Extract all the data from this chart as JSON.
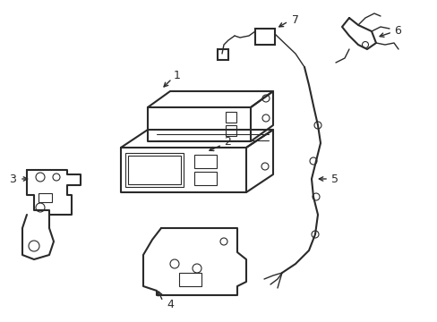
{
  "bg_color": "#ffffff",
  "line_color": "#2a2a2a",
  "lw": 1.0,
  "lw_thick": 1.5,
  "fig_w": 4.89,
  "fig_h": 3.6,
  "dpi": 100
}
